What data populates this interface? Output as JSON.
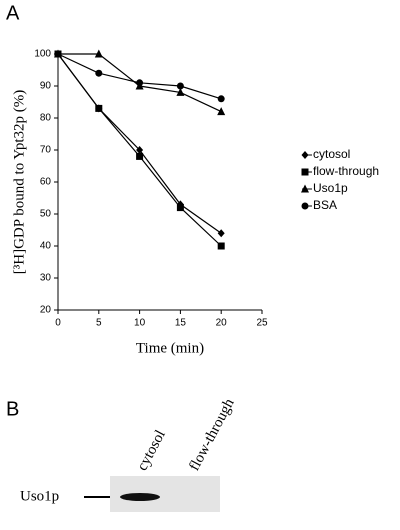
{
  "panel_labels": [
    "A",
    "B"
  ],
  "chart_data": {
    "type": "line",
    "x": [
      0,
      5,
      10,
      15,
      20
    ],
    "xlim": [
      0,
      25
    ],
    "xticks": [
      0,
      5,
      10,
      15,
      20,
      25
    ],
    "ylim": [
      20,
      100
    ],
    "yticks": [
      20,
      30,
      40,
      50,
      60,
      70,
      80,
      90,
      100
    ],
    "xlabel": "Time (min)",
    "ylabel": "[³H]GDP bound to Ypt32p (%)",
    "grid": false,
    "legend": "right",
    "series": [
      {
        "name": "cytosol",
        "color": "#000000",
        "marker": "diamond",
        "values": [
          100,
          83,
          70,
          53,
          44
        ]
      },
      {
        "name": "flow-through",
        "color": "#000000",
        "marker": "square",
        "values": [
          100,
          83,
          68,
          52,
          40
        ]
      },
      {
        "name": "Uso1p",
        "color": "#000000",
        "marker": "triangle",
        "values": [
          100,
          100,
          90,
          88,
          82
        ]
      },
      {
        "name": "BSA",
        "color": "#000000",
        "marker": "circle",
        "values": [
          100,
          94,
          91,
          90,
          86
        ]
      }
    ]
  },
  "blot": {
    "protein": "Uso1p",
    "lanes": [
      "cytosol",
      "flow-through"
    ]
  }
}
